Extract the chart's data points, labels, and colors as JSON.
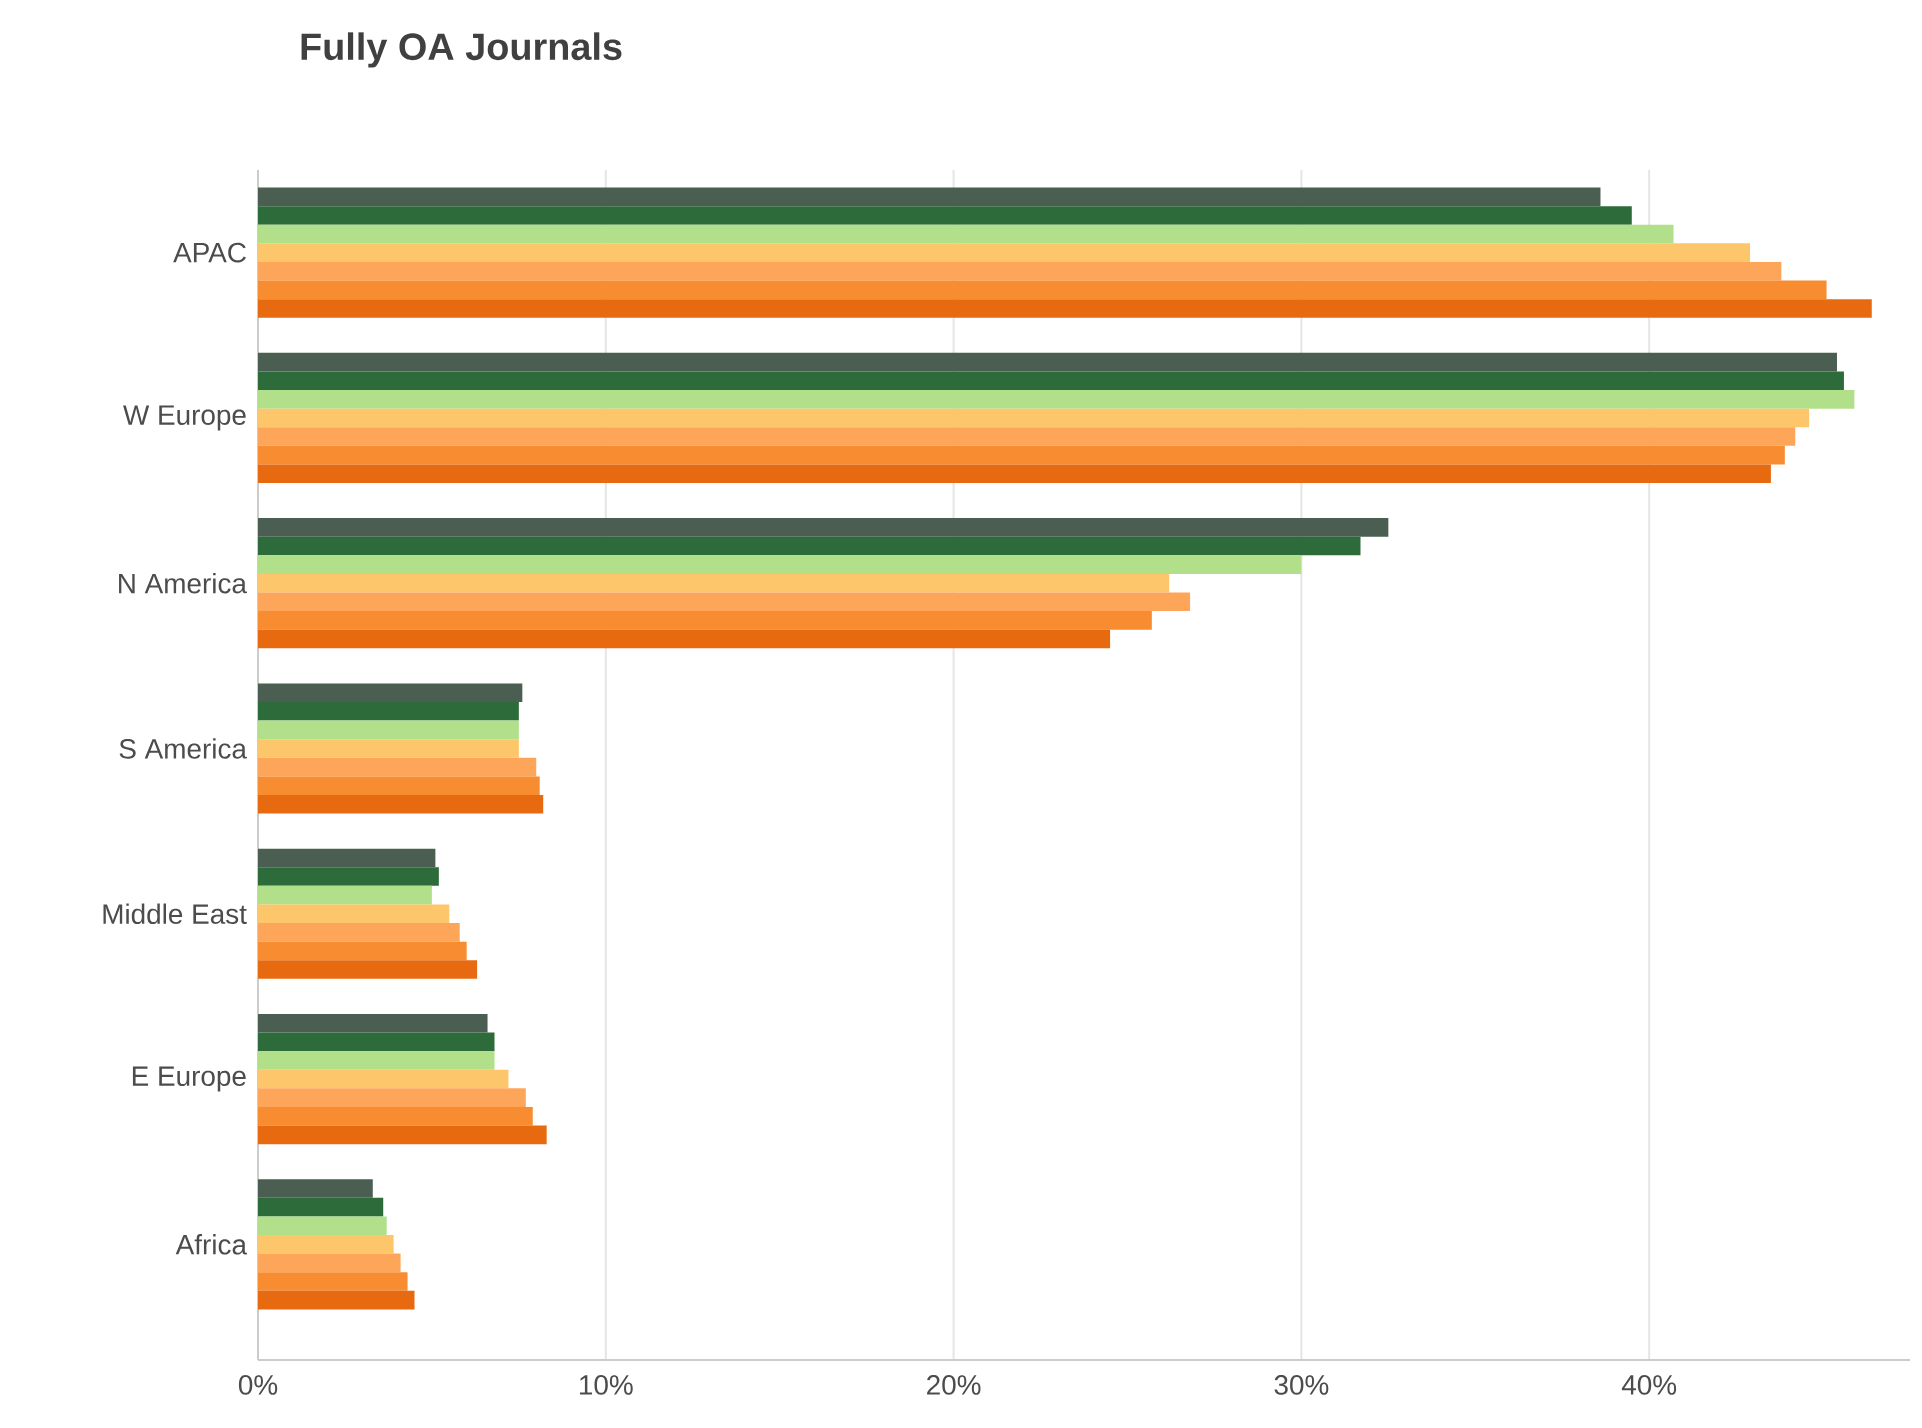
{
  "chart_data": {
    "type": "bar",
    "orientation": "horizontal",
    "title": "Fully OA Journals",
    "categories": [
      "APAC",
      "W Europe",
      "N America",
      "S America",
      "Middle East",
      "E Europe",
      "Africa"
    ],
    "series": [
      {
        "color": "#4a5e52",
        "values": [
          38.6,
          45.4,
          32.5,
          7.6,
          5.1,
          6.6,
          3.3
        ]
      },
      {
        "color": "#2e6b3a",
        "values": [
          39.5,
          45.6,
          31.7,
          7.5,
          5.2,
          6.8,
          3.6
        ]
      },
      {
        "color": "#b2df8a",
        "values": [
          40.7,
          45.9,
          30.0,
          7.5,
          5.0,
          6.8,
          3.7
        ]
      },
      {
        "color": "#fdc66a",
        "values": [
          42.9,
          44.6,
          26.2,
          7.5,
          5.5,
          7.2,
          3.9
        ]
      },
      {
        "color": "#fda65a",
        "values": [
          43.8,
          44.2,
          26.8,
          8.0,
          5.8,
          7.7,
          4.1
        ]
      },
      {
        "color": "#f88c30",
        "values": [
          45.1,
          43.9,
          25.7,
          8.1,
          6.0,
          7.9,
          4.3
        ]
      },
      {
        "color": "#e86a10",
        "values": [
          46.4,
          43.5,
          24.5,
          8.2,
          6.3,
          8.3,
          4.5
        ]
      }
    ],
    "xlim": [
      0,
      47.5
    ],
    "xticks": [
      {
        "value": 0,
        "label": "0%"
      },
      {
        "value": 10,
        "label": "10%"
      },
      {
        "value": 20,
        "label": "20%"
      },
      {
        "value": 30,
        "label": "30%"
      },
      {
        "value": 40,
        "label": "40%"
      }
    ],
    "grid": "x"
  }
}
